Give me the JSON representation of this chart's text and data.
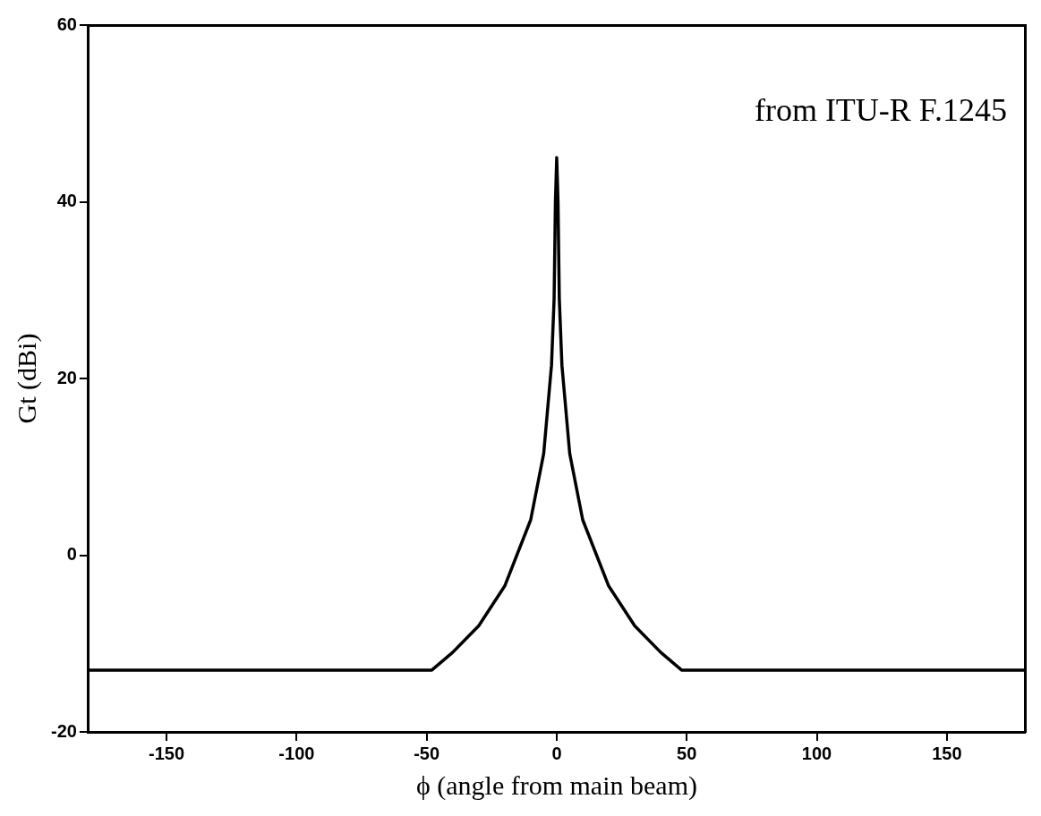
{
  "chart_data": {
    "type": "line",
    "xlabel": "ϕ (angle from main beam)",
    "ylabel": "Gt (dBi)",
    "annotations": [
      "from ITU-R F.1245"
    ],
    "x": [
      -180,
      -48,
      -40,
      -30,
      -20,
      -10,
      -5,
      -2,
      -1,
      -0.5,
      0,
      0.5,
      1,
      2,
      5,
      10,
      20,
      30,
      40,
      48,
      180
    ],
    "series": [
      {
        "color": "#000000",
        "values": [
          -13,
          -13,
          -11,
          -8,
          -3.5,
          4,
          11.5,
          21.5,
          29,
          40,
          45,
          40,
          29,
          21.5,
          11.5,
          4,
          -3.5,
          -8,
          -11,
          -13,
          -13
        ]
      }
    ],
    "xlim": [
      -180,
      180
    ],
    "xticks": [
      -150,
      -100,
      -50,
      0,
      50,
      100,
      150
    ],
    "ylim": [
      -20,
      60
    ],
    "yticks": [
      -20,
      0,
      20,
      40,
      60
    ],
    "grid": false,
    "legend": false,
    "marker": "none",
    "line_style": "solid"
  }
}
